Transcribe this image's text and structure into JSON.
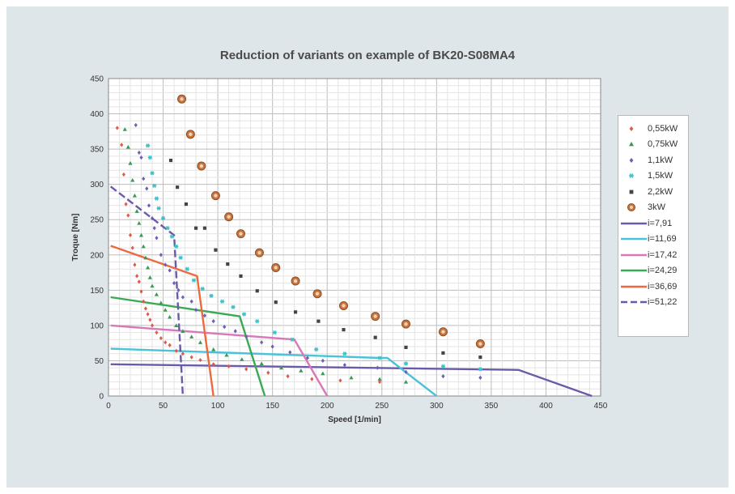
{
  "chart_data": {
    "type": "scatter",
    "title": "Reduction of variants on example of BK20-S08MA4",
    "xlabel": "Speed [1/min]",
    "ylabel": "Troque [Nm]",
    "xlim": [
      0,
      450
    ],
    "ylim": [
      0,
      450
    ],
    "xticks": [
      "0",
      "50",
      "100",
      "150",
      "200",
      "250",
      "300",
      "350",
      "400",
      "450"
    ],
    "yticks": [
      "0",
      "50",
      "100",
      "150",
      "200",
      "250",
      "300",
      "350",
      "400",
      "450"
    ],
    "grid": true,
    "legend_position": "right",
    "scatter_series": [
      {
        "name": "0,55kW",
        "marker": "diamond",
        "color": "#e05a4a",
        "points": [
          [
            8,
            380
          ],
          [
            12,
            356
          ],
          [
            14,
            314
          ],
          [
            16,
            272
          ],
          [
            18,
            256
          ],
          [
            20,
            228
          ],
          [
            22,
            210
          ],
          [
            24,
            186
          ],
          [
            26,
            170
          ],
          [
            28,
            162
          ],
          [
            30,
            148
          ],
          [
            32,
            134
          ],
          [
            34,
            124
          ],
          [
            36,
            116
          ],
          [
            38,
            108
          ],
          [
            40,
            100
          ],
          [
            44,
            90
          ],
          [
            48,
            82
          ],
          [
            52,
            76
          ],
          [
            56,
            72
          ],
          [
            62,
            64
          ],
          [
            68,
            60
          ],
          [
            76,
            55
          ],
          [
            84,
            51
          ],
          [
            96,
            45
          ],
          [
            110,
            42
          ],
          [
            126,
            38
          ],
          [
            146,
            33
          ],
          [
            164,
            28
          ],
          [
            186,
            24
          ],
          [
            212,
            22
          ],
          [
            248,
            20
          ]
        ]
      },
      {
        "name": "0,75kW",
        "marker": "triangle",
        "color": "#3a9a55",
        "points": [
          [
            15,
            378
          ],
          [
            18,
            353
          ],
          [
            20,
            330
          ],
          [
            22,
            306
          ],
          [
            24,
            284
          ],
          [
            26,
            262
          ],
          [
            28,
            245
          ],
          [
            30,
            228
          ],
          [
            32,
            212
          ],
          [
            34,
            196
          ],
          [
            36,
            182
          ],
          [
            38,
            168
          ],
          [
            40,
            156
          ],
          [
            44,
            144
          ],
          [
            48,
            132
          ],
          [
            52,
            122
          ],
          [
            56,
            112
          ],
          [
            62,
            100
          ],
          [
            68,
            92
          ],
          [
            76,
            84
          ],
          [
            84,
            76
          ],
          [
            96,
            66
          ],
          [
            108,
            58
          ],
          [
            122,
            52
          ],
          [
            140,
            46
          ],
          [
            158,
            40
          ],
          [
            176,
            36
          ],
          [
            196,
            32
          ],
          [
            222,
            26
          ],
          [
            248,
            24
          ],
          [
            272,
            20
          ]
        ]
      },
      {
        "name": "1,1kW",
        "marker": "diamond",
        "color": "#6a5fb5",
        "points": [
          [
            25,
            384
          ],
          [
            28,
            345
          ],
          [
            30,
            338
          ],
          [
            32,
            308
          ],
          [
            35,
            294
          ],
          [
            37,
            270
          ],
          [
            40,
            252
          ],
          [
            42,
            238
          ],
          [
            44,
            224
          ],
          [
            48,
            200
          ],
          [
            52,
            186
          ],
          [
            56,
            178
          ],
          [
            60,
            160
          ],
          [
            64,
            150
          ],
          [
            68,
            140
          ],
          [
            76,
            134
          ],
          [
            80,
            122
          ],
          [
            88,
            114
          ],
          [
            96,
            106
          ],
          [
            106,
            98
          ],
          [
            116,
            92
          ],
          [
            126,
            84
          ],
          [
            140,
            76
          ],
          [
            150,
            70
          ],
          [
            166,
            62
          ],
          [
            182,
            54
          ],
          [
            196,
            50
          ],
          [
            216,
            44
          ],
          [
            246,
            40
          ],
          [
            272,
            34
          ],
          [
            306,
            28
          ],
          [
            340,
            26
          ]
        ]
      },
      {
        "name": "1,5kW",
        "marker": "asterisk",
        "color": "#3ec2c9",
        "points": [
          [
            36,
            355
          ],
          [
            38,
            338
          ],
          [
            40,
            316
          ],
          [
            42,
            298
          ],
          [
            44,
            280
          ],
          [
            46,
            266
          ],
          [
            50,
            252
          ],
          [
            54,
            238
          ],
          [
            58,
            226
          ],
          [
            62,
            212
          ],
          [
            66,
            196
          ],
          [
            72,
            180
          ],
          [
            78,
            164
          ],
          [
            86,
            152
          ],
          [
            94,
            142
          ],
          [
            104,
            134
          ],
          [
            114,
            126
          ],
          [
            124,
            116
          ],
          [
            136,
            106
          ],
          [
            152,
            90
          ],
          [
            168,
            80
          ],
          [
            190,
            66
          ],
          [
            216,
            60
          ],
          [
            248,
            54
          ],
          [
            272,
            46
          ],
          [
            306,
            42
          ],
          [
            340,
            38
          ]
        ]
      },
      {
        "name": "2,2kW",
        "marker": "square",
        "color": "#444444",
        "points": [
          [
            57,
            334
          ],
          [
            63,
            296
          ],
          [
            71,
            272
          ],
          [
            80,
            238
          ],
          [
            88,
            238
          ],
          [
            98,
            207
          ],
          [
            109,
            187
          ],
          [
            121,
            170
          ],
          [
            136,
            149
          ],
          [
            153,
            133
          ],
          [
            171,
            119
          ],
          [
            192,
            106
          ],
          [
            215,
            94
          ],
          [
            244,
            83
          ],
          [
            272,
            69
          ],
          [
            306,
            61
          ],
          [
            340,
            55
          ]
        ]
      },
      {
        "name": "3kW",
        "marker": "circle",
        "color": "#c9743d",
        "points": [
          [
            67,
            421
          ],
          [
            75,
            371
          ],
          [
            85,
            326
          ],
          [
            98,
            284
          ],
          [
            110,
            254
          ],
          [
            121,
            230
          ],
          [
            138,
            203
          ],
          [
            153,
            182
          ],
          [
            171,
            163
          ],
          [
            191,
            145
          ],
          [
            215,
            128
          ],
          [
            244,
            113
          ],
          [
            272,
            102
          ],
          [
            306,
            91
          ],
          [
            340,
            74
          ]
        ]
      }
    ],
    "line_series": [
      {
        "name": "i=7,91",
        "color": "#6a5aa8",
        "dash": false,
        "points": [
          [
            2,
            45
          ],
          [
            375,
            37
          ],
          [
            442,
            0
          ]
        ]
      },
      {
        "name": "i=11,69",
        "color": "#4ac3d8",
        "dash": false,
        "points": [
          [
            2,
            67
          ],
          [
            248,
            54
          ],
          [
            255,
            54
          ],
          [
            300,
            0
          ]
        ]
      },
      {
        "name": "i=17,42",
        "color": "#d878b8",
        "dash": false,
        "points": [
          [
            2,
            100
          ],
          [
            170,
            80
          ],
          [
            200,
            0
          ]
        ]
      },
      {
        "name": "i=24,29",
        "color": "#3aaa55",
        "dash": false,
        "points": [
          [
            2,
            140
          ],
          [
            120,
            113
          ],
          [
            143,
            0
          ]
        ]
      },
      {
        "name": "i=36,69",
        "color": "#ec6a3d",
        "dash": false,
        "points": [
          [
            2,
            213
          ],
          [
            81,
            170
          ],
          [
            96,
            0
          ]
        ]
      },
      {
        "name": "i=51,22",
        "color": "#6a5aa8",
        "dash": true,
        "points": [
          [
            2,
            297
          ],
          [
            60,
            228
          ],
          [
            68,
            0
          ]
        ]
      }
    ]
  }
}
